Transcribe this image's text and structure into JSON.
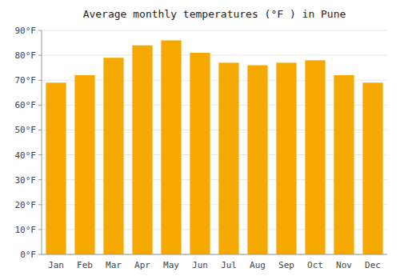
{
  "chart_data": {
    "type": "bar",
    "title": "Average monthly temperatures (°F ) in Pune",
    "categories": [
      "Jan",
      "Feb",
      "Mar",
      "Apr",
      "May",
      "Jun",
      "Jul",
      "Aug",
      "Sep",
      "Oct",
      "Nov",
      "Dec"
    ],
    "values": [
      69,
      72,
      79,
      84,
      86,
      81,
      77,
      76,
      77,
      78,
      72,
      69
    ],
    "color": "#F5A800",
    "ylim": [
      0,
      90
    ],
    "yticks": [
      {
        "value": 0,
        "label": "0°F"
      },
      {
        "value": 10,
        "label": "10°F"
      },
      {
        "value": 20,
        "label": "20°F"
      },
      {
        "value": 30,
        "label": "30°F"
      },
      {
        "value": 40,
        "label": "40°F"
      },
      {
        "value": 50,
        "label": "50°F"
      },
      {
        "value": 60,
        "label": "60°F"
      },
      {
        "value": 70,
        "label": "70°F"
      },
      {
        "value": 80,
        "label": "80°F"
      },
      {
        "value": 90,
        "label": "90°F"
      }
    ],
    "grid": true
  }
}
